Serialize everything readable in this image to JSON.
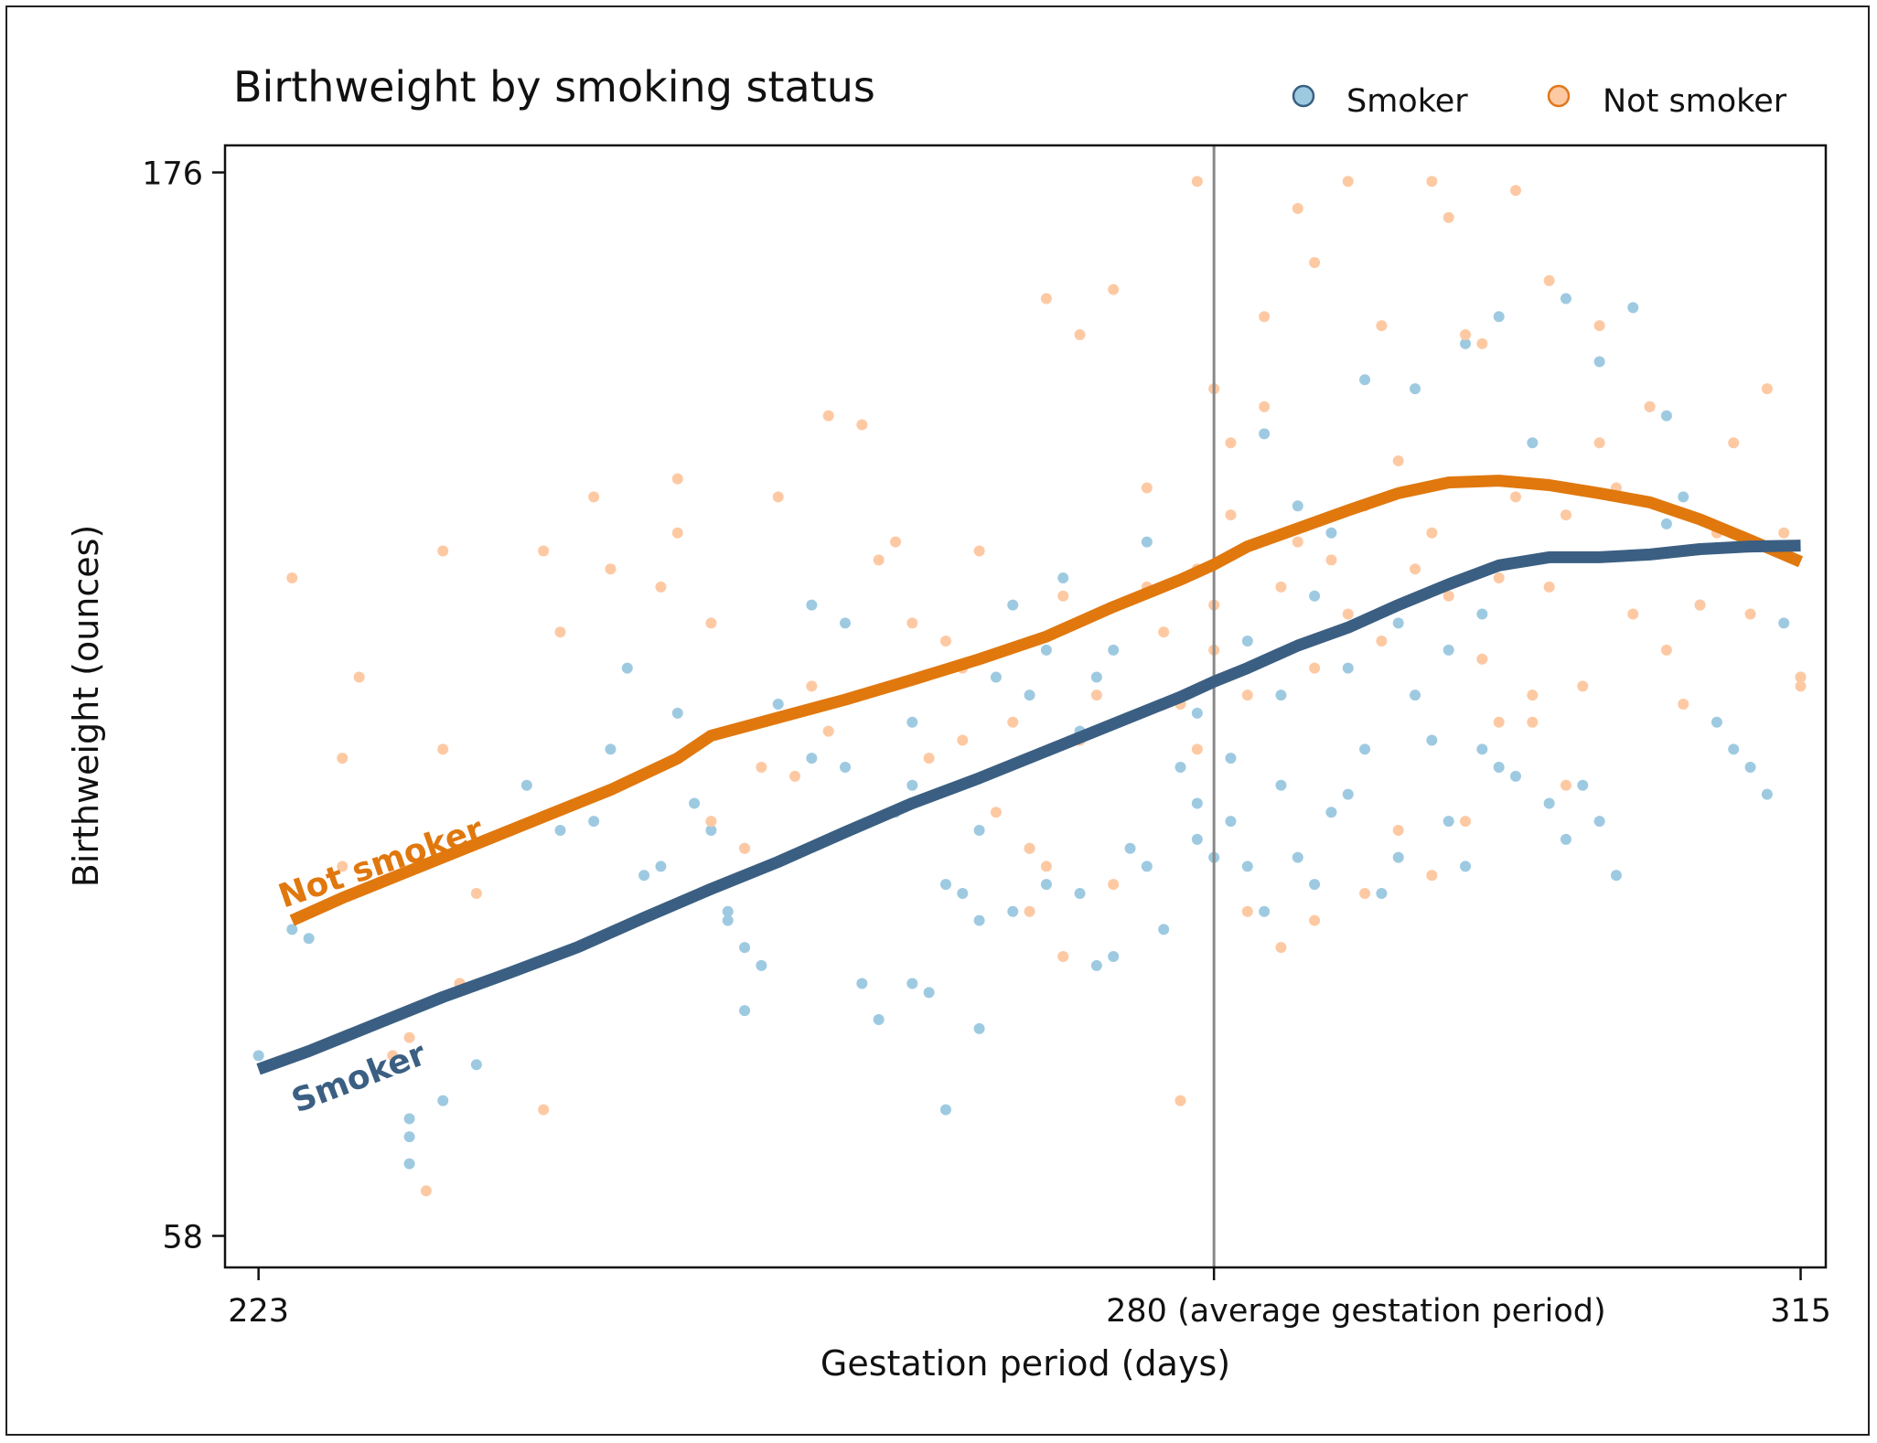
{
  "chart_data": {
    "type": "scatter",
    "title": "Birthweight by smoking status",
    "xlabel": "Gestation period (days)",
    "ylabel": "Birthweight (ounces)",
    "xlim": [
      221,
      316.5
    ],
    "ylim": [
      54.5,
      179
    ],
    "x_ticks": [
      {
        "value": 223,
        "label": "223"
      },
      {
        "value": 280,
        "label": "280 (average gestation period)"
      },
      {
        "value": 315,
        "label": "315"
      }
    ],
    "y_ticks": [
      {
        "value": 176,
        "label": "176"
      },
      {
        "value": 58,
        "label": "58"
      }
    ],
    "reference_line": {
      "x": 280
    },
    "legend": {
      "position": "top-right",
      "entries": [
        "Smoker",
        "Not smoker"
      ]
    },
    "colors": {
      "smoker_point": "#9ecae1",
      "smoker_point_edge": "#3b5f82",
      "not_smoker_point": "#fdc9a3",
      "not_smoker_point_edge": "#e0781a",
      "smoker_line": "#3b5f82",
      "not_smoker_line": "#e0780e",
      "reference_line": "#888888"
    },
    "series": [
      {
        "name": "Smoker",
        "curve_label": "Smoker",
        "points": [
          [
            223,
            78
          ],
          [
            225,
            92
          ],
          [
            226,
            91
          ],
          [
            232,
            66
          ],
          [
            232,
            69
          ],
          [
            232,
            71
          ],
          [
            234,
            73
          ],
          [
            236,
            77
          ],
          [
            243,
            104
          ],
          [
            245,
            121
          ],
          [
            246,
            98
          ],
          [
            249,
            106
          ],
          [
            250,
            103
          ],
          [
            251,
            93
          ],
          [
            251,
            94
          ],
          [
            252,
            83
          ],
          [
            252,
            101
          ],
          [
            252,
            90
          ],
          [
            253,
            88
          ],
          [
            256,
            111
          ],
          [
            256,
            128
          ],
          [
            259,
            86
          ],
          [
            261,
            105
          ],
          [
            262,
            108
          ],
          [
            262,
            86
          ],
          [
            263,
            85
          ],
          [
            264,
            72
          ],
          [
            265,
            96
          ],
          [
            266,
            93
          ],
          [
            266,
            103
          ],
          [
            266,
            81
          ],
          [
            267,
            120
          ],
          [
            268,
            94
          ],
          [
            269,
            101
          ],
          [
            270,
            97
          ],
          [
            272,
            96
          ],
          [
            273,
            88
          ],
          [
            273,
            120
          ],
          [
            274,
            89
          ],
          [
            275,
            101
          ],
          [
            276,
            99
          ],
          [
            277,
            92
          ],
          [
            278,
            110
          ],
          [
            279,
            106
          ],
          [
            279,
            102
          ],
          [
            280,
            100
          ],
          [
            281,
            104
          ],
          [
            281,
            111
          ],
          [
            282,
            99
          ],
          [
            283,
            94
          ],
          [
            284,
            108
          ],
          [
            285,
            100
          ],
          [
            286,
            97
          ],
          [
            287,
            105
          ],
          [
            288,
            107
          ],
          [
            289,
            112
          ],
          [
            290,
            96
          ],
          [
            291,
            100
          ],
          [
            292,
            118
          ],
          [
            293,
            113
          ],
          [
            294,
            104
          ],
          [
            295,
            99
          ],
          [
            296,
            112
          ],
          [
            297,
            110
          ],
          [
            298,
            109
          ],
          [
            300,
            106
          ],
          [
            301,
            102
          ],
          [
            302,
            108
          ],
          [
            303,
            104
          ],
          [
            304,
            98
          ],
          [
            306,
            150
          ],
          [
            307,
            137
          ],
          [
            308,
            140
          ],
          [
            309,
            128
          ],
          [
            310,
            115
          ],
          [
            311,
            112
          ],
          [
            312,
            110
          ],
          [
            313,
            107
          ],
          [
            314,
            126
          ],
          [
            315,
            120
          ],
          [
            258,
            110
          ],
          [
            260,
            82
          ],
          [
            262,
            115
          ],
          [
            264,
            97
          ],
          [
            271,
            131
          ],
          [
            276,
            135
          ],
          [
            283,
            147
          ],
          [
            285,
            139
          ],
          [
            287,
            136
          ],
          [
            289,
            153
          ],
          [
            292,
            152
          ],
          [
            295,
            157
          ],
          [
            297,
            160
          ],
          [
            299,
            146
          ],
          [
            301,
            162
          ],
          [
            303,
            155
          ],
          [
            305,
            161
          ],
          [
            307,
            149
          ],
          [
            269,
            118
          ],
          [
            272,
            114
          ],
          [
            274,
            123
          ],
          [
            277,
            117
          ],
          [
            282,
            124
          ],
          [
            286,
            129
          ],
          [
            288,
            121
          ],
          [
            291,
            126
          ],
          [
            294,
            123
          ],
          [
            296,
            127
          ],
          [
            239,
            108
          ],
          [
            241,
            103
          ],
          [
            244,
            112
          ],
          [
            247,
            99
          ],
          [
            248,
            116
          ],
          [
            254,
            117
          ],
          [
            258,
            126
          ],
          [
            268,
            128
          ],
          [
            270,
            123
          ],
          [
            279,
            116
          ],
          [
            284,
            118
          ]
        ],
        "trend": [
          [
            223,
            76.5
          ],
          [
            226,
            78.5
          ],
          [
            230,
            81.5
          ],
          [
            234,
            84.5
          ],
          [
            238,
            87.2
          ],
          [
            242,
            90
          ],
          [
            246,
            93.3
          ],
          [
            250,
            96.5
          ],
          [
            254,
            99.5
          ],
          [
            258,
            102.8
          ],
          [
            262,
            106
          ],
          [
            266,
            108.8
          ],
          [
            270,
            111.8
          ],
          [
            274,
            114.8
          ],
          [
            278,
            117.8
          ],
          [
            280,
            119.5
          ],
          [
            282,
            121
          ],
          [
            285,
            123.5
          ],
          [
            288,
            125.5
          ],
          [
            291,
            128
          ],
          [
            294,
            130.3
          ],
          [
            297,
            132.4
          ],
          [
            300,
            133.3
          ],
          [
            303,
            133.3
          ],
          [
            306,
            133.6
          ],
          [
            309,
            134.2
          ],
          [
            312,
            134.5
          ],
          [
            315,
            134.6
          ]
        ]
      },
      {
        "name": "Not smoker",
        "curve_label": "Not smoker",
        "points": [
          [
            225,
            131
          ],
          [
            228,
            99
          ],
          [
            228,
            111
          ],
          [
            229,
            120
          ],
          [
            232,
            80
          ],
          [
            233,
            63
          ],
          [
            234,
            134
          ],
          [
            234,
            112
          ],
          [
            235,
            86
          ],
          [
            236,
            96
          ],
          [
            240,
            134
          ],
          [
            241,
            125
          ],
          [
            243,
            140
          ],
          [
            244,
            132
          ],
          [
            247,
            130
          ],
          [
            248,
            136
          ],
          [
            250,
            126
          ],
          [
            252,
            101
          ],
          [
            253,
            110
          ],
          [
            254,
            140
          ],
          [
            255,
            109
          ],
          [
            256,
            119
          ],
          [
            257,
            114
          ],
          [
            259,
            148
          ],
          [
            260,
            133
          ],
          [
            261,
            135
          ],
          [
            262,
            126
          ],
          [
            264,
            124
          ],
          [
            265,
            113
          ],
          [
            265,
            121
          ],
          [
            266,
            134
          ],
          [
            267,
            105
          ],
          [
            268,
            115
          ],
          [
            269,
            101
          ],
          [
            270,
            99
          ],
          [
            270,
            162
          ],
          [
            271,
            129
          ],
          [
            272,
            113
          ],
          [
            273,
            118
          ],
          [
            274,
            97
          ],
          [
            276,
            141
          ],
          [
            276,
            130
          ],
          [
            277,
            125
          ],
          [
            278,
            117
          ],
          [
            279,
            132
          ],
          [
            279,
            112
          ],
          [
            280,
            128
          ],
          [
            280,
            123
          ],
          [
            281,
            138
          ],
          [
            282,
            118
          ],
          [
            283,
            150
          ],
          [
            284,
            130
          ],
          [
            285,
            135
          ],
          [
            286,
            121
          ],
          [
            287,
            133
          ],
          [
            288,
            127
          ],
          [
            289,
            139
          ],
          [
            290,
            124
          ],
          [
            291,
            144
          ],
          [
            292,
            132
          ],
          [
            293,
            136
          ],
          [
            294,
            129
          ],
          [
            295,
            158
          ],
          [
            296,
            122
          ],
          [
            297,
            131
          ],
          [
            298,
            140
          ],
          [
            299,
            115
          ],
          [
            300,
            130
          ],
          [
            301,
            138
          ],
          [
            302,
            119
          ],
          [
            303,
            146
          ],
          [
            304,
            141
          ],
          [
            305,
            127
          ],
          [
            306,
            150
          ],
          [
            307,
            123
          ],
          [
            308,
            117
          ],
          [
            309,
            128
          ],
          [
            310,
            136
          ],
          [
            311,
            146
          ],
          [
            312,
            127
          ],
          [
            313,
            152
          ],
          [
            314,
            136
          ],
          [
            315,
            120
          ],
          [
            315,
            119
          ],
          [
            272,
            158
          ],
          [
            274,
            163
          ],
          [
            279,
            175
          ],
          [
            280,
            152
          ],
          [
            281,
            146
          ],
          [
            283,
            160
          ],
          [
            285,
            172
          ],
          [
            286,
            166
          ],
          [
            288,
            175
          ],
          [
            290,
            159
          ],
          [
            293,
            175
          ],
          [
            294,
            171
          ],
          [
            296,
            157
          ],
          [
            298,
            174
          ],
          [
            300,
            164
          ],
          [
            303,
            159
          ],
          [
            231,
            78
          ],
          [
            235,
            86
          ],
          [
            240,
            72
          ],
          [
            248,
            142
          ],
          [
            250,
            104
          ],
          [
            257,
            149
          ],
          [
            263,
            111
          ],
          [
            269,
            94
          ],
          [
            271,
            89
          ],
          [
            278,
            73
          ],
          [
            282,
            94
          ],
          [
            284,
            90
          ],
          [
            286,
            93
          ],
          [
            289,
            96
          ],
          [
            291,
            103
          ],
          [
            293,
            98
          ],
          [
            295,
            104
          ],
          [
            297,
            115
          ],
          [
            299,
            118
          ],
          [
            301,
            108
          ]
        ],
        "trend": [
          [
            225,
            93
          ],
          [
            228,
            95.5
          ],
          [
            232,
            98.5
          ],
          [
            236,
            101.5
          ],
          [
            240,
            104.5
          ],
          [
            244,
            107.5
          ],
          [
            248,
            111
          ],
          [
            250,
            113.5
          ],
          [
            254,
            115.5
          ],
          [
            258,
            117.5
          ],
          [
            262,
            119.7
          ],
          [
            266,
            122
          ],
          [
            270,
            124.5
          ],
          [
            274,
            127.8
          ],
          [
            278,
            130.8
          ],
          [
            280,
            132.5
          ],
          [
            282,
            134.5
          ],
          [
            285,
            136.5
          ],
          [
            288,
            138.5
          ],
          [
            291,
            140.4
          ],
          [
            294,
            141.6
          ],
          [
            297,
            141.8
          ],
          [
            300,
            141.3
          ],
          [
            303,
            140.4
          ],
          [
            306,
            139.4
          ],
          [
            309,
            137.5
          ],
          [
            312,
            135.2
          ],
          [
            315,
            132.8
          ]
        ]
      }
    ]
  }
}
